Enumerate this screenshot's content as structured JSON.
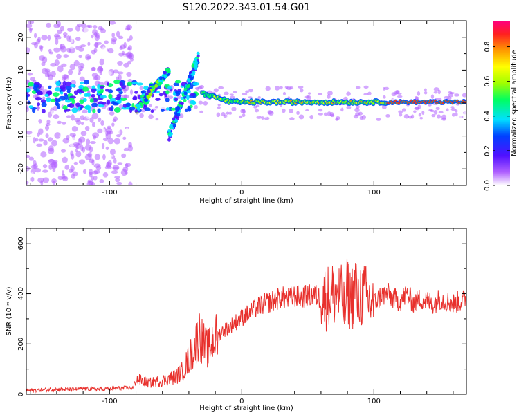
{
  "title": "S120.2022.343.01.54.G01",
  "chart_data": [
    {
      "type": "heatmap",
      "xlabel": "Height of straight line (km)",
      "ylabel": "Frequency (Hz)",
      "xlim": [
        -163,
        170
      ],
      "ylim": [
        -25,
        25
      ],
      "xticks": [
        -100,
        0,
        100
      ],
      "yticks": [
        -20,
        -10,
        0,
        10,
        20
      ],
      "colorbar": {
        "label": "Normalized spectral amplitude",
        "range": [
          0.0,
          0.95
        ],
        "ticks": [
          0.0,
          0.2,
          0.4,
          0.6,
          0.8
        ],
        "tick_labels": [
          "0.0",
          "0.2",
          "0.4",
          "0.6",
          "0.8"
        ],
        "colormap": [
          "#ffffff",
          "#b060ff",
          "#5010ff",
          "#0040ff",
          "#00e0ff",
          "#00ff60",
          "#a0ff00",
          "#ffff00",
          "#ff9900",
          "#ff2020",
          "#ff0080"
        ]
      },
      "features": [
        {
          "description": "diffuse scattered low-amplitude signal",
          "x_range": [
            -163,
            -100
          ],
          "freq_range": [
            -25,
            25
          ]
        },
        {
          "description": "rising tone branch",
          "x_range": [
            -80,
            -55
          ],
          "freq_range": [
            -2,
            10
          ]
        },
        {
          "description": "rising tone branch",
          "x_range": [
            -55,
            -35
          ],
          "freq_range": [
            -10,
            14
          ]
        },
        {
          "description": "tone near 0 Hz",
          "x_range": [
            -30,
            170
          ],
          "freq_range": [
            -1,
            4
          ],
          "peak_amplitude": 0.9
        }
      ]
    },
    {
      "type": "line",
      "xlabel": "Height of straight line (km)",
      "ylabel": "SNR (10 * v/v)",
      "xlim": [
        -163,
        170
      ],
      "ylim": [
        0,
        660
      ],
      "xticks": [
        -100,
        0,
        100
      ],
      "yticks": [
        0,
        200,
        400,
        600
      ],
      "color": "#e8302c",
      "series": [
        {
          "x": [
            -163,
            -150,
            -140,
            -130,
            -120,
            -110,
            -100,
            -90,
            -82,
            -80,
            -70,
            -60,
            -50,
            -45,
            -40,
            -35,
            -32,
            -28,
            -25,
            -22,
            -18,
            -15,
            -10,
            -5,
            0,
            5,
            10,
            15,
            20,
            25,
            30,
            35,
            40,
            45,
            50,
            55,
            60,
            65,
            70,
            75,
            78,
            80,
            82,
            85,
            86,
            88,
            90,
            95,
            100,
            105,
            110,
            115,
            120,
            125,
            130,
            135,
            140,
            145,
            150,
            155,
            160,
            165,
            170
          ],
          "y": [
            15,
            18,
            20,
            18,
            22,
            20,
            22,
            25,
            25,
            60,
            45,
            55,
            70,
            90,
            140,
            200,
            240,
            190,
            180,
            215,
            230,
            250,
            265,
            285,
            305,
            320,
            340,
            355,
            365,
            375,
            385,
            380,
            390,
            385,
            390,
            395,
            380,
            385,
            400,
            390,
            330,
            420,
            380,
            400,
            460,
            350,
            400,
            380,
            360,
            390,
            400,
            380,
            370,
            400,
            360,
            380,
            370,
            360,
            380,
            370,
            360,
            370,
            375
          ]
        }
      ]
    }
  ]
}
